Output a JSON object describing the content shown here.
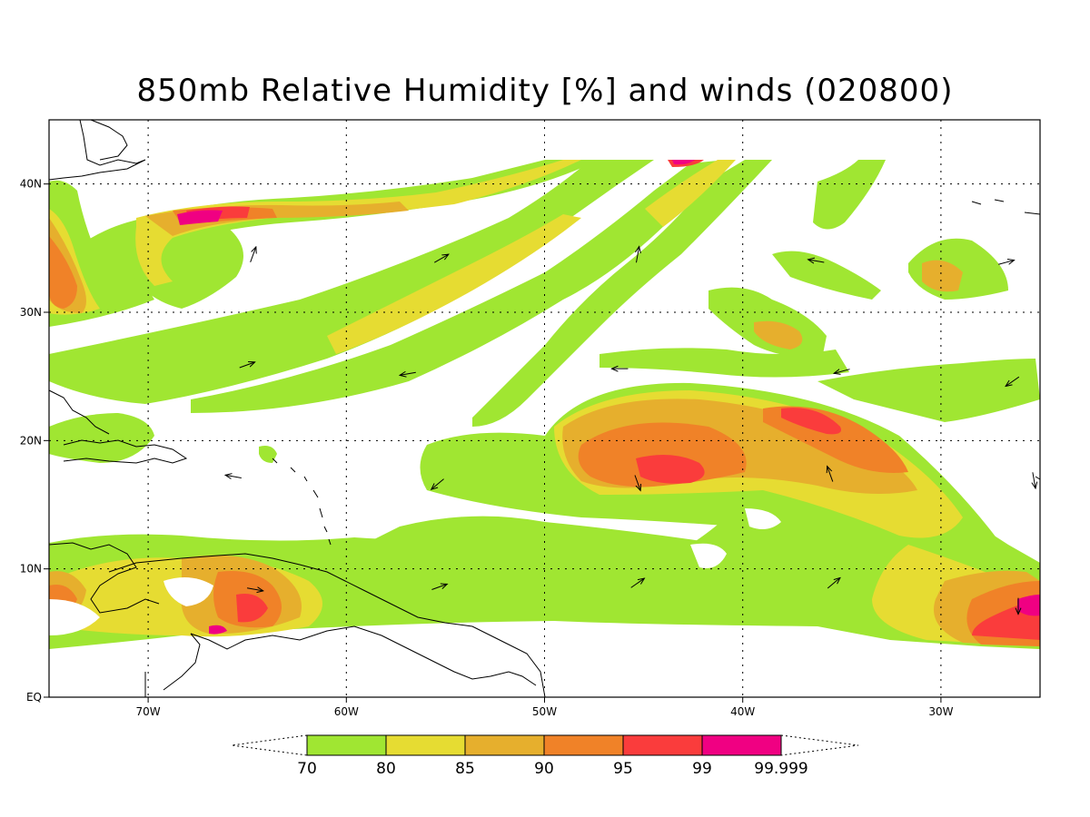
{
  "title": "850mb Relative Humidity [%] and winds (020800)",
  "map": {
    "lon_range": [
      -75,
      -25
    ],
    "lat_range": [
      0,
      45
    ],
    "x_ticks": [
      {
        "lon": -70,
        "label": "70W"
      },
      {
        "lon": -60,
        "label": "60W"
      },
      {
        "lon": -50,
        "label": "50W"
      },
      {
        "lon": -40,
        "label": "40W"
      },
      {
        "lon": -30,
        "label": "30W"
      }
    ],
    "y_ticks": [
      {
        "lat": 0,
        "label": "EQ"
      },
      {
        "lat": 10,
        "label": "10N"
      },
      {
        "lat": 20,
        "label": "20N"
      },
      {
        "lat": 30,
        "label": "30N"
      },
      {
        "lat": 40,
        "label": "40N"
      }
    ],
    "grid": "dotted"
  },
  "colorbar": {
    "levels": [
      "70",
      "80",
      "85",
      "90",
      "95",
      "99",
      "99.999"
    ],
    "colors": [
      "#a0e632",
      "#e6dc32",
      "#e6af2d",
      "#f08228",
      "#fa3c3c",
      "#f00082"
    ]
  },
  "winds": [
    {
      "lon": -64.7,
      "lat": 34.5,
      "dir": 70
    },
    {
      "lon": -55.2,
      "lat": 34.2,
      "dir": 30
    },
    {
      "lon": -45.3,
      "lat": 34.5,
      "dir": 80
    },
    {
      "lon": -36.3,
      "lat": 34.0,
      "dir": 170
    },
    {
      "lon": -26.7,
      "lat": 33.9,
      "dir": 15
    },
    {
      "lon": -65.0,
      "lat": 25.9,
      "dir": 20
    },
    {
      "lon": -56.9,
      "lat": 25.2,
      "dir": 190
    },
    {
      "lon": -46.2,
      "lat": 25.6,
      "dir": 180
    },
    {
      "lon": -35.0,
      "lat": 25.4,
      "dir": 195
    },
    {
      "lon": -26.4,
      "lat": 24.6,
      "dir": 215
    },
    {
      "lon": -55.4,
      "lat": 16.6,
      "dir": 220
    },
    {
      "lon": -45.3,
      "lat": 16.7,
      "dir": 290
    },
    {
      "lon": -35.6,
      "lat": 17.4,
      "dir": 110
    },
    {
      "lon": -25.3,
      "lat": 16.9,
      "dir": 280
    },
    {
      "lon": -65.7,
      "lat": 17.2,
      "dir": 170
    },
    {
      "lon": -64.6,
      "lat": 8.4,
      "dir": 350
    },
    {
      "lon": -55.3,
      "lat": 8.6,
      "dir": 20
    },
    {
      "lon": -45.3,
      "lat": 8.9,
      "dir": 35
    },
    {
      "lon": -35.4,
      "lat": 8.9,
      "dir": 40
    },
    {
      "lon": -26.1,
      "lat": 7.1,
      "dir": 270
    }
  ]
}
